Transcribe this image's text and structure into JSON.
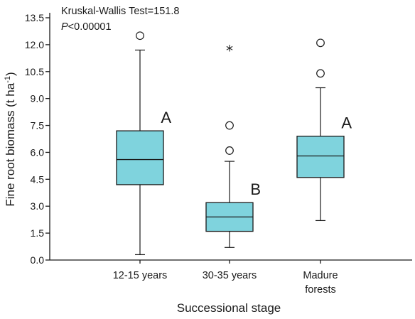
{
  "chart_data": {
    "type": "boxplot",
    "annotation": {
      "test_line": "Kruskal-Wallis Test=151.8",
      "p_symbol": "P",
      "p_rest": "<0.00001"
    },
    "xlabel": "Successional stage",
    "ylabel": "Fine root biomass (t ha",
    "ylabel_sup": "-1",
    "ylabel_end": ")",
    "ylim": [
      0,
      13.5
    ],
    "yticks": [
      0.0,
      1.5,
      3.0,
      4.5,
      6.0,
      7.5,
      9.0,
      10.5,
      12.0,
      13.5
    ],
    "ytick_labels": [
      "0.0",
      "1.5",
      "3.0",
      "4.5",
      "6.0",
      "7.5",
      "9.0",
      "10.5",
      "12.0",
      "13.5"
    ],
    "box_color": "#7fd3dd",
    "groups": [
      {
        "label_lines": [
          "12-15 years"
        ],
        "whisker_low": 0.3,
        "q1": 4.2,
        "median": 5.6,
        "q3": 7.2,
        "whisker_high": 11.7,
        "outliers": [
          12.5
        ],
        "extremes": [],
        "letter": "A"
      },
      {
        "label_lines": [
          "30-35 years"
        ],
        "whisker_low": 0.7,
        "q1": 1.6,
        "median": 2.4,
        "q3": 3.2,
        "whisker_high": 5.5,
        "outliers": [
          6.1,
          7.5
        ],
        "extremes": [
          11.7
        ],
        "letter": "B"
      },
      {
        "label_lines": [
          "Madure",
          "forests"
        ],
        "whisker_low": 2.2,
        "q1": 4.6,
        "median": 5.8,
        "q3": 6.9,
        "whisker_high": 9.6,
        "outliers": [
          10.4,
          12.1
        ],
        "extremes": [],
        "letter": "A"
      }
    ]
  }
}
